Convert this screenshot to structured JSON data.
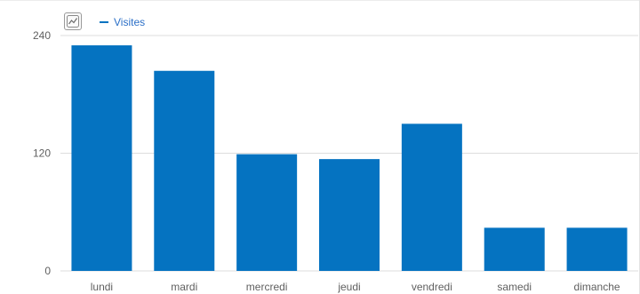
{
  "chart_data": {
    "type": "bar",
    "categories": [
      "lundi",
      "mardi",
      "mercredi",
      "jeudi",
      "vendredi",
      "samedi",
      "dimanche"
    ],
    "series": [
      {
        "name": "Visites",
        "values": [
          230,
          204,
          119,
          114,
          150,
          44,
          44
        ]
      }
    ],
    "ylim": [
      0,
      240
    ],
    "yticks": [
      0,
      120,
      240
    ],
    "grid": true,
    "legend": "top-left"
  },
  "colors": {
    "bar": "#0573c1",
    "legend_text": "#2b6fc7",
    "axis_text": "#5f5f5f",
    "grid": "#dddddd"
  },
  "icons": {
    "chart_type": "line-chart-icon"
  }
}
